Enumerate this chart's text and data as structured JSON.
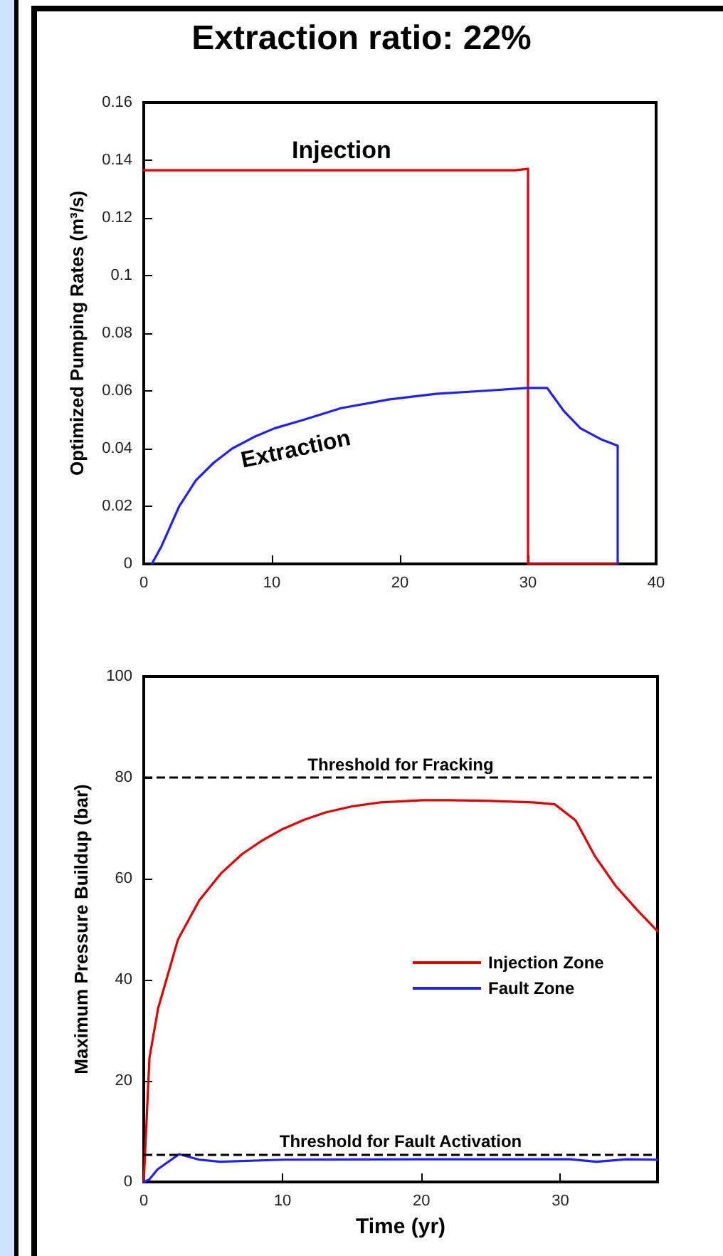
{
  "chart_data": [
    {
      "type": "line",
      "title": "Extraction ratio: 22%",
      "ylabel": "Optimized Pumping Rates (m³/s)",
      "xlim": [
        0,
        40
      ],
      "xticks": [
        0,
        10,
        20,
        30,
        40
      ],
      "ylim": [
        0,
        0.16
      ],
      "yticks": [
        0,
        0.02,
        0.04,
        0.06,
        0.08,
        0.1,
        0.12,
        0.14,
        0.16
      ],
      "grid": false,
      "legend": false,
      "marker": "none",
      "line_style": "solid",
      "series": [
        {
          "name": "Injection",
          "color": "#e00000",
          "x": [
            0,
            29,
            30,
            30,
            37
          ],
          "values": [
            0.1365,
            0.1365,
            0.137,
            0,
            0
          ]
        },
        {
          "name": "Extraction",
          "color": "#2020ff",
          "x": [
            0.63,
            1.37,
            2.77,
            4.07,
            5.44,
            6.9,
            8.6,
            10.2,
            12.5,
            15.4,
            19.1,
            22.8,
            26.5,
            29.9,
            31.5,
            32.8,
            34.1,
            35.8,
            37,
            37
          ],
          "values": [
            0,
            0.006,
            0.02,
            0.029,
            0.035,
            0.04,
            0.044,
            0.047,
            0.05,
            0.054,
            0.057,
            0.059,
            0.06,
            0.061,
            0.061,
            0.053,
            0.047,
            0.043,
            0.041,
            0
          ]
        }
      ]
    },
    {
      "type": "line",
      "xlabel": "Time (yr)",
      "ylabel": "Maximum Pressure Buildup (bar)",
      "xlim": [
        0,
        37
      ],
      "xticks": [
        0,
        10,
        20,
        30
      ],
      "ylim": [
        0,
        100
      ],
      "yticks": [
        0,
        20,
        40,
        60,
        80,
        100
      ],
      "grid": false,
      "legend": "right",
      "marker": "none",
      "line_style": "solid",
      "ref_lines": [
        {
          "axis": "y",
          "value": 80,
          "label": "Threshold for Fracking",
          "color": "#000000",
          "line_style": "dashed"
        },
        {
          "axis": "y",
          "value": 5.5,
          "label": "Threshold for Fault Activation",
          "color": "#000000",
          "line_style": "dashed"
        }
      ],
      "series": [
        {
          "name": "Injection Zone",
          "color": "#e00000",
          "x": [
            0,
            0.41,
            1.03,
            2.47,
            4,
            5.55,
            7.1,
            8.5,
            10,
            11.6,
            13.1,
            15,
            17.1,
            20.1,
            22,
            24.6,
            28,
            29.6,
            31.1,
            32.5,
            34,
            35.6,
            37
          ],
          "values": [
            0,
            24.5,
            34.3,
            48,
            55.7,
            61,
            64.9,
            67.5,
            69.8,
            71.7,
            73.1,
            74.3,
            75.1,
            75.5,
            75.5,
            75.4,
            75.1,
            74.7,
            71.5,
            64.4,
            58.5,
            53.6,
            49.6
          ]
        },
        {
          "name": "Fault Zone",
          "color": "#2020ff",
          "x": [
            0,
            0.4,
            1,
            2.55,
            4,
            5.5,
            10,
            20,
            30.7,
            32.6,
            34.8,
            37
          ],
          "values": [
            0,
            0.5,
            2.5,
            5.5,
            4.4,
            4,
            4.4,
            4.5,
            4.5,
            4,
            4.5,
            4.4
          ]
        }
      ]
    }
  ]
}
